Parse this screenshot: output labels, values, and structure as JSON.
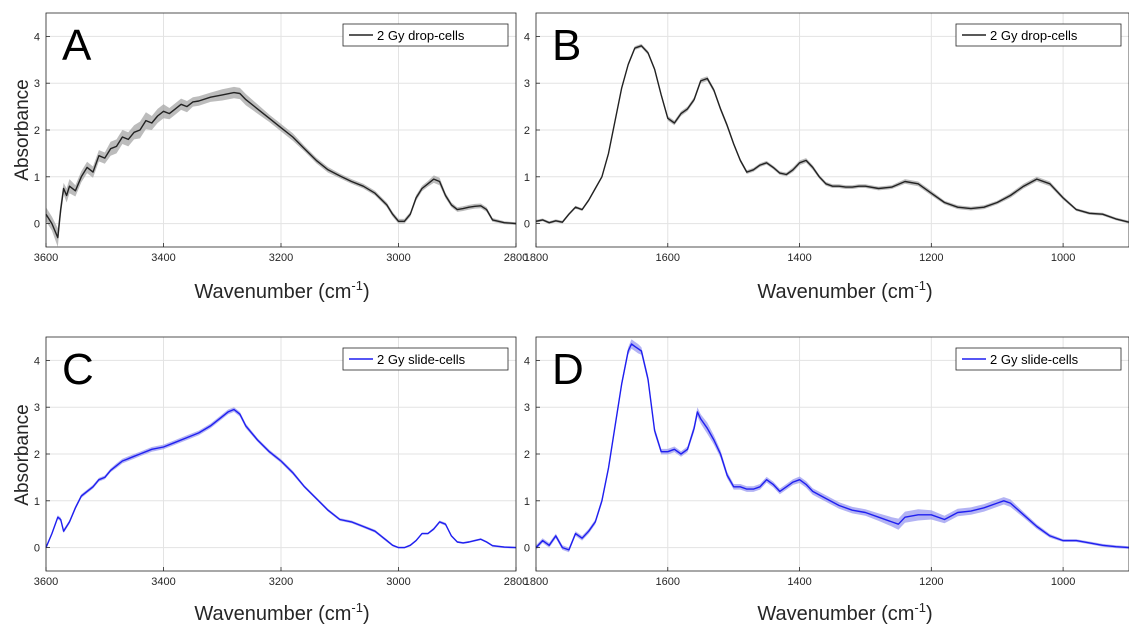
{
  "figure": {
    "ylabel": "Absorbance",
    "xlabel_main": "Wavenumber (cm",
    "xlabel_sup": "-1",
    "xlabel_close": ")"
  },
  "chart_data": [
    {
      "id": "A",
      "type": "line",
      "panel_letter": "A",
      "legend": "2 Gy drop-cells",
      "legend_placement": "top-right",
      "color": "#222222",
      "band_color": "#a6a6a6",
      "grid": true,
      "xlim": [
        3600,
        2800
      ],
      "ylim": [
        -0.5,
        4.5
      ],
      "xticks": [
        3600,
        3400,
        3200,
        3000,
        2800
      ],
      "yticks": [
        0,
        1,
        2,
        3,
        4
      ],
      "series": [
        {
          "x": [
            3600,
            3590,
            3580,
            3575,
            3570,
            3565,
            3560,
            3550,
            3540,
            3530,
            3520,
            3510,
            3500,
            3490,
            3480,
            3470,
            3460,
            3450,
            3440,
            3430,
            3420,
            3410,
            3400,
            3390,
            3380,
            3370,
            3360,
            3350,
            3340,
            3320,
            3300,
            3280,
            3270,
            3260,
            3240,
            3220,
            3200,
            3180,
            3160,
            3140,
            3120,
            3100,
            3080,
            3060,
            3040,
            3020,
            3010,
            3000,
            2990,
            2980,
            2970,
            2960,
            2950,
            2940,
            2930,
            2920,
            2910,
            2900,
            2890,
            2880,
            2870,
            2860,
            2850,
            2840,
            2820,
            2800
          ],
          "y": [
            0.2,
            0.0,
            -0.3,
            0.3,
            0.75,
            0.6,
            0.8,
            0.7,
            1.0,
            1.2,
            1.1,
            1.45,
            1.4,
            1.6,
            1.65,
            1.85,
            1.8,
            1.95,
            2.0,
            2.2,
            2.15,
            2.3,
            2.4,
            2.35,
            2.45,
            2.55,
            2.5,
            2.6,
            2.62,
            2.7,
            2.75,
            2.8,
            2.78,
            2.65,
            2.45,
            2.25,
            2.05,
            1.85,
            1.6,
            1.35,
            1.15,
            1.02,
            0.9,
            0.8,
            0.65,
            0.4,
            0.2,
            0.05,
            0.05,
            0.2,
            0.55,
            0.75,
            0.85,
            0.95,
            0.9,
            0.6,
            0.4,
            0.3,
            0.32,
            0.35,
            0.37,
            0.38,
            0.3,
            0.08,
            0.02,
            0.0
          ],
          "band": [
            0.15,
            0.15,
            0.2,
            0.15,
            0.12,
            0.15,
            0.15,
            0.12,
            0.12,
            0.12,
            0.12,
            0.12,
            0.12,
            0.15,
            0.15,
            0.15,
            0.15,
            0.15,
            0.18,
            0.18,
            0.15,
            0.15,
            0.15,
            0.12,
            0.12,
            0.12,
            0.12,
            0.1,
            0.1,
            0.1,
            0.12,
            0.12,
            0.12,
            0.12,
            0.1,
            0.08,
            0.08,
            0.08,
            0.06,
            0.06,
            0.06,
            0.05,
            0.05,
            0.05,
            0.05,
            0.05,
            0.05,
            0.05,
            0.05,
            0.05,
            0.06,
            0.06,
            0.06,
            0.08,
            0.08,
            0.06,
            0.05,
            0.05,
            0.05,
            0.05,
            0.05,
            0.05,
            0.05,
            0.04,
            0.03,
            0.03
          ]
        }
      ]
    },
    {
      "id": "B",
      "type": "line",
      "panel_letter": "B",
      "legend": "2 Gy drop-cells",
      "legend_placement": "top-right",
      "color": "#222222",
      "band_color": "#a6a6a6",
      "grid": true,
      "xlim": [
        1800,
        900
      ],
      "ylim": [
        -0.5,
        4.5
      ],
      "xticks": [
        1800,
        1600,
        1400,
        1200,
        1000
      ],
      "yticks": [
        0,
        1,
        2,
        3,
        4
      ],
      "series": [
        {
          "x": [
            1800,
            1790,
            1780,
            1770,
            1760,
            1750,
            1740,
            1730,
            1720,
            1710,
            1700,
            1690,
            1680,
            1670,
            1660,
            1650,
            1640,
            1630,
            1620,
            1610,
            1600,
            1590,
            1580,
            1570,
            1560,
            1550,
            1540,
            1530,
            1520,
            1510,
            1500,
            1490,
            1480,
            1470,
            1460,
            1450,
            1440,
            1430,
            1420,
            1410,
            1400,
            1390,
            1380,
            1370,
            1360,
            1350,
            1340,
            1330,
            1320,
            1310,
            1300,
            1280,
            1260,
            1240,
            1220,
            1200,
            1180,
            1160,
            1140,
            1120,
            1100,
            1080,
            1060,
            1040,
            1020,
            1000,
            980,
            960,
            940,
            920,
            900
          ],
          "y": [
            0.05,
            0.08,
            0.02,
            0.06,
            0.03,
            0.2,
            0.35,
            0.3,
            0.5,
            0.75,
            1.0,
            1.5,
            2.2,
            2.9,
            3.4,
            3.75,
            3.8,
            3.65,
            3.3,
            2.75,
            2.25,
            2.15,
            2.35,
            2.45,
            2.65,
            3.05,
            3.1,
            2.85,
            2.45,
            2.1,
            1.7,
            1.35,
            1.1,
            1.15,
            1.25,
            1.3,
            1.2,
            1.08,
            1.05,
            1.15,
            1.3,
            1.35,
            1.2,
            1.0,
            0.85,
            0.8,
            0.8,
            0.78,
            0.78,
            0.8,
            0.8,
            0.75,
            0.78,
            0.9,
            0.85,
            0.65,
            0.45,
            0.35,
            0.32,
            0.35,
            0.45,
            0.6,
            0.8,
            0.95,
            0.85,
            0.55,
            0.3,
            0.22,
            0.2,
            0.1,
            0.03
          ],
          "band": [
            0.03,
            0.03,
            0.03,
            0.03,
            0.03,
            0.03,
            0.03,
            0.03,
            0.03,
            0.03,
            0.03,
            0.03,
            0.04,
            0.04,
            0.04,
            0.04,
            0.04,
            0.04,
            0.04,
            0.04,
            0.05,
            0.05,
            0.05,
            0.05,
            0.05,
            0.05,
            0.05,
            0.05,
            0.05,
            0.05,
            0.04,
            0.04,
            0.04,
            0.04,
            0.04,
            0.04,
            0.04,
            0.04,
            0.04,
            0.05,
            0.05,
            0.05,
            0.05,
            0.04,
            0.04,
            0.04,
            0.04,
            0.04,
            0.04,
            0.04,
            0.04,
            0.04,
            0.04,
            0.05,
            0.05,
            0.05,
            0.04,
            0.04,
            0.04,
            0.04,
            0.04,
            0.05,
            0.05,
            0.05,
            0.05,
            0.04,
            0.03,
            0.03,
            0.03,
            0.03,
            0.03
          ]
        }
      ]
    },
    {
      "id": "C",
      "type": "line",
      "panel_letter": "C",
      "legend": "2 Gy slide-cells",
      "legend_placement": "top-right",
      "color": "#1f1ff0",
      "band_color": "#9a9af0",
      "grid": true,
      "xlim": [
        3600,
        2800
      ],
      "ylim": [
        -0.5,
        4.5
      ],
      "xticks": [
        3600,
        3400,
        3200,
        3000,
        2800
      ],
      "yticks": [
        0,
        1,
        2,
        3,
        4
      ],
      "series": [
        {
          "x": [
            3600,
            3590,
            3580,
            3575,
            3570,
            3560,
            3550,
            3540,
            3530,
            3520,
            3510,
            3500,
            3490,
            3480,
            3470,
            3460,
            3450,
            3440,
            3420,
            3400,
            3380,
            3360,
            3340,
            3320,
            3300,
            3290,
            3280,
            3270,
            3260,
            3240,
            3220,
            3200,
            3180,
            3160,
            3140,
            3120,
            3100,
            3080,
            3060,
            3040,
            3020,
            3010,
            3000,
            2990,
            2980,
            2970,
            2960,
            2950,
            2940,
            2930,
            2920,
            2910,
            2900,
            2890,
            2880,
            2870,
            2860,
            2850,
            2840,
            2820,
            2800
          ],
          "y": [
            0.0,
            0.3,
            0.65,
            0.6,
            0.35,
            0.55,
            0.85,
            1.1,
            1.2,
            1.3,
            1.45,
            1.5,
            1.65,
            1.75,
            1.85,
            1.9,
            1.95,
            2.0,
            2.1,
            2.15,
            2.25,
            2.35,
            2.45,
            2.6,
            2.8,
            2.9,
            2.95,
            2.85,
            2.6,
            2.3,
            2.05,
            1.85,
            1.6,
            1.3,
            1.05,
            0.8,
            0.6,
            0.55,
            0.45,
            0.35,
            0.15,
            0.05,
            0.0,
            0.0,
            0.05,
            0.15,
            0.3,
            0.3,
            0.4,
            0.55,
            0.5,
            0.25,
            0.12,
            0.1,
            0.12,
            0.15,
            0.18,
            0.12,
            0.04,
            0.01,
            0.0
          ],
          "band": [
            0.03,
            0.03,
            0.04,
            0.04,
            0.04,
            0.04,
            0.04,
            0.04,
            0.04,
            0.04,
            0.04,
            0.04,
            0.04,
            0.05,
            0.05,
            0.05,
            0.05,
            0.05,
            0.05,
            0.05,
            0.05,
            0.05,
            0.05,
            0.05,
            0.05,
            0.05,
            0.05,
            0.05,
            0.05,
            0.04,
            0.04,
            0.04,
            0.04,
            0.03,
            0.03,
            0.03,
            0.03,
            0.03,
            0.03,
            0.03,
            0.03,
            0.02,
            0.02,
            0.02,
            0.02,
            0.02,
            0.02,
            0.02,
            0.03,
            0.03,
            0.03,
            0.02,
            0.02,
            0.02,
            0.02,
            0.02,
            0.02,
            0.02,
            0.02,
            0.02,
            0.02
          ]
        }
      ]
    },
    {
      "id": "D",
      "type": "line",
      "panel_letter": "D",
      "legend": "2 Gy slide-cells",
      "legend_placement": "top-right",
      "color": "#1f1ff0",
      "band_color": "#9a9af0",
      "grid": true,
      "xlim": [
        1800,
        900
      ],
      "ylim": [
        -0.5,
        4.5
      ],
      "xticks": [
        1800,
        1600,
        1400,
        1200,
        1000
      ],
      "yticks": [
        0,
        1,
        2,
        3,
        4
      ],
      "series": [
        {
          "x": [
            1800,
            1790,
            1780,
            1770,
            1760,
            1750,
            1740,
            1730,
            1720,
            1710,
            1700,
            1690,
            1680,
            1670,
            1660,
            1655,
            1650,
            1645,
            1640,
            1630,
            1620,
            1610,
            1600,
            1590,
            1580,
            1570,
            1560,
            1555,
            1550,
            1540,
            1530,
            1520,
            1510,
            1500,
            1490,
            1480,
            1470,
            1460,
            1450,
            1440,
            1430,
            1420,
            1410,
            1400,
            1390,
            1380,
            1360,
            1340,
            1320,
            1300,
            1280,
            1260,
            1250,
            1240,
            1220,
            1200,
            1180,
            1160,
            1140,
            1120,
            1100,
            1090,
            1080,
            1060,
            1040,
            1020,
            1000,
            980,
            960,
            940,
            920,
            900
          ],
          "y": [
            0.0,
            0.15,
            0.05,
            0.25,
            0.0,
            -0.05,
            0.3,
            0.2,
            0.35,
            0.55,
            1.0,
            1.7,
            2.6,
            3.5,
            4.2,
            4.35,
            4.3,
            4.25,
            4.2,
            3.6,
            2.5,
            2.05,
            2.05,
            2.1,
            2.0,
            2.1,
            2.55,
            2.9,
            2.75,
            2.55,
            2.3,
            2.0,
            1.55,
            1.3,
            1.3,
            1.25,
            1.25,
            1.3,
            1.45,
            1.35,
            1.2,
            1.3,
            1.4,
            1.45,
            1.35,
            1.2,
            1.05,
            0.9,
            0.8,
            0.75,
            0.65,
            0.55,
            0.5,
            0.65,
            0.7,
            0.7,
            0.6,
            0.75,
            0.78,
            0.85,
            0.95,
            1.0,
            0.95,
            0.7,
            0.45,
            0.25,
            0.15,
            0.15,
            0.1,
            0.05,
            0.02,
            0.0
          ],
          "band": [
            0.05,
            0.05,
            0.05,
            0.05,
            0.05,
            0.05,
            0.05,
            0.05,
            0.05,
            0.05,
            0.06,
            0.06,
            0.06,
            0.07,
            0.08,
            0.1,
            0.1,
            0.1,
            0.08,
            0.08,
            0.07,
            0.06,
            0.06,
            0.06,
            0.06,
            0.06,
            0.08,
            0.1,
            0.1,
            0.12,
            0.1,
            0.08,
            0.07,
            0.06,
            0.06,
            0.06,
            0.06,
            0.06,
            0.06,
            0.06,
            0.06,
            0.06,
            0.06,
            0.07,
            0.07,
            0.07,
            0.07,
            0.07,
            0.07,
            0.07,
            0.08,
            0.1,
            0.12,
            0.12,
            0.12,
            0.1,
            0.08,
            0.08,
            0.08,
            0.08,
            0.08,
            0.08,
            0.08,
            0.06,
            0.05,
            0.04,
            0.03,
            0.03,
            0.03,
            0.03,
            0.03,
            0.03
          ]
        }
      ]
    }
  ]
}
